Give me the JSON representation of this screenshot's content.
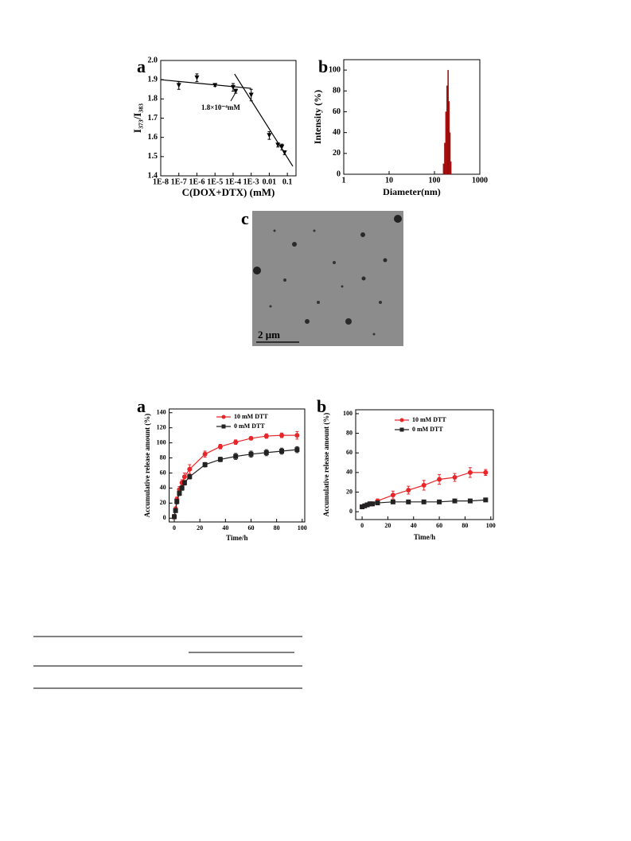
{
  "chart_data": [
    {
      "type": "scatter",
      "panel": "a",
      "xlabel": "C(DOX+DTX) (mM)",
      "ylabel": "I₃₇₃/I₃₈₃",
      "xscale": "log",
      "xlim": [
        1e-08,
        0.3
      ],
      "ylim": [
        1.4,
        2.0
      ],
      "xticks": [
        {
          "value": 1e-08,
          "label": "1E-8"
        },
        {
          "value": 1e-07,
          "label": "1E-7"
        },
        {
          "value": 1e-06,
          "label": "1E-6"
        },
        {
          "value": 1e-05,
          "label": "1E-5"
        },
        {
          "value": 0.0001,
          "label": "1E-4"
        },
        {
          "value": 0.001,
          "label": "1E-3"
        },
        0.01,
        0.1
      ],
      "yticks": [
        1.4,
        1.5,
        1.6,
        1.7,
        1.8,
        1.9,
        {
          "value": 2,
          "label": "2.0"
        }
      ],
      "series": [
        {
          "color": "#000000",
          "marker": "triangle-down",
          "x": [
            1e-07,
            1e-06,
            1e-05,
            0.0001,
            0.00014,
            0.001,
            0.01,
            0.03,
            0.05,
            0.07
          ],
          "values": [
            1.87,
            1.91,
            1.87,
            1.86,
            1.84,
            1.82,
            1.61,
            1.56,
            1.55,
            1.52
          ],
          "errors": [
            0.02,
            0.02,
            0.005,
            0.02,
            0.01,
            0.03,
            0.02,
            0.01,
            0.015,
            0.01
          ]
        }
      ],
      "fit_lines": [
        {
          "color": "#000000",
          "x": [
            1e-08,
            0.001
          ],
          "values": [
            1.9,
            1.855
          ]
        },
        {
          "color": "#000000",
          "x": [
            0.00012,
            0.2
          ],
          "values": [
            1.93,
            1.45
          ]
        }
      ],
      "annotation": "1.8×10⁻⁴mM"
    },
    {
      "type": "histogram",
      "panel": "b",
      "xlabel": "Diameter(nm)",
      "ylabel": "Intensity (%)",
      "xscale": "log",
      "xlim": [
        1,
        1000
      ],
      "ylim": [
        0,
        110
      ],
      "xticks": [
        1,
        10,
        100,
        1000
      ],
      "yticks": [
        0,
        20,
        40,
        60,
        80,
        100
      ],
      "color": "#b01010",
      "bins": [
        155,
        165,
        175,
        185,
        195,
        205,
        215,
        225,
        235
      ],
      "values": [
        10,
        30,
        60,
        85,
        100,
        70,
        40,
        12
      ]
    },
    {
      "type": "image",
      "panel": "c",
      "scale_bar": "2 μm"
    },
    {
      "type": "line",
      "panel": "a",
      "xlabel": "Time/h",
      "ylabel": "Accumulative release amount (%)",
      "xlim": [
        -4,
        102
      ],
      "ylim": [
        -5,
        145
      ],
      "xticks": [
        0,
        20,
        40,
        60,
        80,
        100
      ],
      "yticks": [
        0,
        20,
        40,
        60,
        80,
        100,
        120,
        140
      ],
      "x": [
        0,
        1,
        2,
        4,
        6,
        8,
        12,
        24,
        36,
        48,
        60,
        72,
        84,
        96
      ],
      "series": [
        {
          "name": "10 mM DTT",
          "color": "#e8262a",
          "marker": "circle",
          "values": [
            2,
            12,
            25,
            38,
            47,
            55,
            65,
            85,
            95,
            101,
            106,
            109,
            110,
            110
          ],
          "errors": [
            3,
            3,
            3,
            4,
            4,
            5,
            6,
            4,
            3,
            3,
            2,
            3,
            3,
            5
          ]
        },
        {
          "name": "0 mM DTT",
          "color": "#222222",
          "marker": "square",
          "values": [
            2,
            10,
            22,
            33,
            40,
            47,
            55,
            71,
            78,
            82,
            85,
            87,
            89,
            91
          ],
          "errors": [
            2,
            2,
            3,
            3,
            3,
            3,
            3,
            3,
            3,
            4,
            4,
            4,
            4,
            4
          ]
        }
      ]
    },
    {
      "type": "line",
      "panel": "b",
      "xlabel": "Time/h",
      "ylabel": "Accumulative release amount (%)",
      "xlim": [
        -5,
        102
      ],
      "ylim": [
        -8,
        104
      ],
      "xticks": [
        0,
        20,
        40,
        60,
        80,
        100
      ],
      "yticks": [
        0,
        20,
        40,
        60,
        80,
        100
      ],
      "x": [
        0,
        2,
        4,
        6,
        8,
        12,
        24,
        36,
        48,
        60,
        72,
        84,
        96
      ],
      "series": [
        {
          "name": "10 mM DTT",
          "color": "#e8262a",
          "marker": "circle",
          "values": [
            5,
            6,
            7,
            8,
            8,
            11,
            17,
            22,
            27,
            33,
            35,
            40,
            40
          ],
          "errors": [
            1,
            1,
            1,
            2,
            2,
            2,
            4,
            4,
            5,
            5,
            4,
            5,
            3
          ]
        },
        {
          "name": "0 mM DTT",
          "color": "#222222",
          "marker": "square",
          "values": [
            5,
            6,
            7,
            8,
            8,
            9,
            10,
            10,
            10,
            10,
            11,
            11,
            12
          ],
          "errors": [
            0.5,
            0.5,
            0.5,
            0.5,
            0.5,
            0.5,
            0.5,
            0.5,
            0.5,
            0.5,
            0.5,
            0.5,
            0.5
          ]
        }
      ]
    }
  ]
}
